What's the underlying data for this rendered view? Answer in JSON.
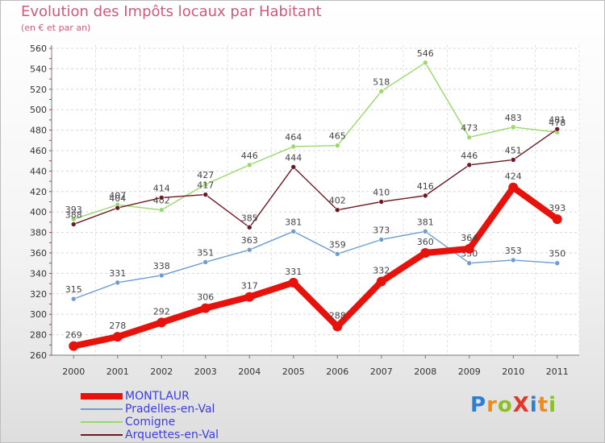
{
  "chart_data": {
    "type": "line",
    "title": "Evolution des Impôts locaux par Habitant",
    "subtitle": "(en € et par an)",
    "xlabel": "",
    "ylabel": "",
    "categories": [
      "2000",
      "2001",
      "2002",
      "2003",
      "2004",
      "2005",
      "2006",
      "2007",
      "2008",
      "2009",
      "2010",
      "2011"
    ],
    "ylim": [
      260,
      560
    ],
    "yticks": [
      260,
      280,
      300,
      320,
      340,
      360,
      380,
      400,
      420,
      440,
      460,
      480,
      500,
      520,
      540,
      560
    ],
    "series": [
      {
        "name": "MONTLAUR",
        "color": "#e8120c",
        "values": [
          269,
          278,
          292,
          306,
          317,
          331,
          288,
          332,
          360,
          364,
          424,
          393
        ]
      },
      {
        "name": "Pradelles-en-Val",
        "color": "#6e9cce",
        "values": [
          315,
          331,
          338,
          351,
          363,
          381,
          359,
          373,
          381,
          350,
          353,
          350
        ]
      },
      {
        "name": "Comigne",
        "color": "#9ad86a",
        "values": [
          393,
          407,
          402,
          427,
          446,
          464,
          465,
          518,
          546,
          473,
          483,
          478
        ]
      },
      {
        "name": "Arquettes-en-Val",
        "color": "#6a1a22",
        "values": [
          388,
          404,
          414,
          417,
          385,
          444,
          402,
          410,
          416,
          446,
          451,
          481
        ]
      }
    ]
  },
  "branding": {
    "logo_text": "ProXiti",
    "letter_colors": [
      "#2e7fd0",
      "#f28a1a",
      "#8bbf26",
      "#e5362a",
      "#2e7fd0",
      "#f28a1a",
      "#8bbf26"
    ]
  }
}
